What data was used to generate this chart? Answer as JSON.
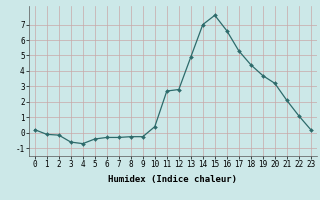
{
  "x": [
    0,
    1,
    2,
    3,
    4,
    5,
    6,
    7,
    8,
    9,
    10,
    11,
    12,
    13,
    14,
    15,
    16,
    17,
    18,
    19,
    20,
    21,
    22,
    23
  ],
  "y": [
    0.2,
    -0.1,
    -0.15,
    -0.6,
    -0.7,
    -0.4,
    -0.3,
    -0.3,
    -0.25,
    -0.25,
    0.4,
    2.7,
    2.8,
    4.9,
    7.0,
    7.6,
    6.6,
    5.3,
    4.4,
    3.7,
    3.2,
    2.1,
    1.1,
    0.2
  ],
  "line_color": "#2d6b6b",
  "marker": "D",
  "marker_size": 2,
  "background_color": "#cce8e8",
  "grid_color": "#c8a8a8",
  "xlabel": "Humidex (Indice chaleur)",
  "ylim": [
    -1.5,
    8.2
  ],
  "xlim": [
    -0.5,
    23.5
  ],
  "yticks": [
    -1,
    0,
    1,
    2,
    3,
    4,
    5,
    6,
    7
  ],
  "xticks": [
    0,
    1,
    2,
    3,
    4,
    5,
    6,
    7,
    8,
    9,
    10,
    11,
    12,
    13,
    14,
    15,
    16,
    17,
    18,
    19,
    20,
    21,
    22,
    23
  ],
  "xlabel_fontsize": 6.5,
  "tick_fontsize": 5.5
}
